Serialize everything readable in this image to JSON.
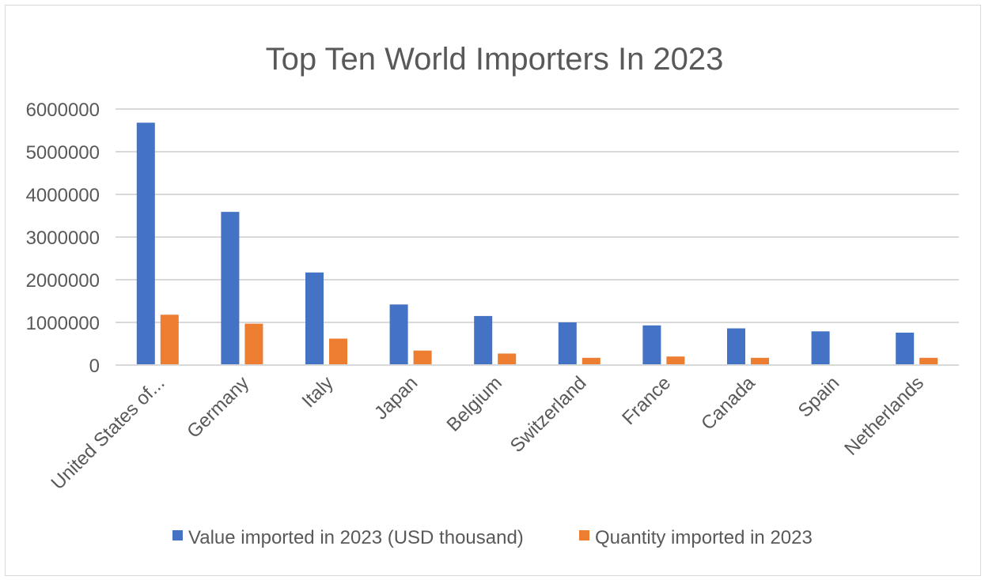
{
  "chart_data": {
    "type": "bar",
    "title": "Top Ten World Importers In 2023",
    "xlabel": "",
    "ylabel": "",
    "categories": [
      "United States of...",
      "Germany",
      "Italy",
      "Japan",
      "Belgium",
      "Switzerland",
      "France",
      "Canada",
      "Spain",
      "Netherlands"
    ],
    "series": [
      {
        "name": "Value imported in 2023 (USD thousand)",
        "color": "#4472c4",
        "values": [
          5680000,
          3590000,
          2170000,
          1420000,
          1150000,
          1000000,
          930000,
          860000,
          790000,
          760000
        ]
      },
      {
        "name": "Quantity imported in 2023",
        "color": "#ed7d31",
        "values": [
          1180000,
          970000,
          620000,
          340000,
          270000,
          170000,
          200000,
          170000,
          0,
          170000
        ]
      }
    ],
    "ylim": [
      0,
      6000000
    ],
    "yticks": [
      0,
      1000000,
      2000000,
      3000000,
      4000000,
      5000000,
      6000000
    ],
    "grid": true,
    "legend_position": "bottom"
  }
}
